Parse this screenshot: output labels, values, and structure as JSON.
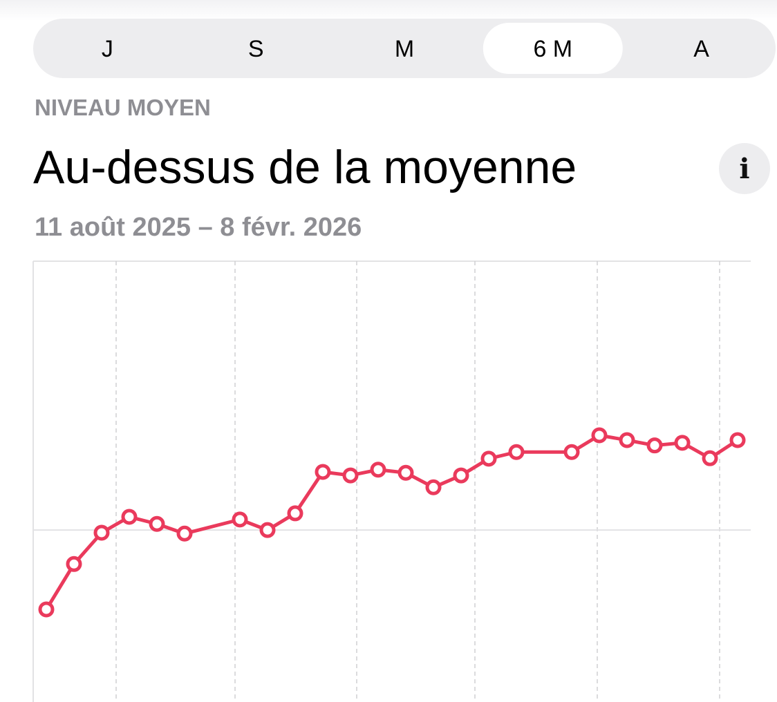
{
  "segmented_control": {
    "segments": [
      "J",
      "S",
      "M",
      "6 M",
      "A"
    ],
    "selected": 3
  },
  "header": {
    "label": "NIVEAU MOYEN",
    "title": "Au-dessus de la moyenne",
    "info": "i",
    "date_range": "11 août 2025 – 8 févr. 2026"
  },
  "chart_data": {
    "type": "line",
    "color": "#ea3a5c",
    "x": [
      0,
      1,
      2,
      3,
      4,
      5,
      7,
      8,
      9,
      10,
      11,
      12,
      13,
      14,
      15,
      16,
      17,
      19,
      20,
      21,
      22,
      23,
      24,
      25
    ],
    "values": [
      21.0,
      31.3,
      38.4,
      42.0,
      40.4,
      38.2,
      41.4,
      39.0,
      42.8,
      52.2,
      51.4,
      52.7,
      52.0,
      48.7,
      51.4,
      55.2,
      56.7,
      56.7,
      60.5,
      59.4,
      58.2,
      58.8,
      55.3,
      59.4
    ],
    "xlim": [
      -0.475,
      25.475
    ],
    "ylim": [
      0,
      100
    ],
    "xticks": [
      2.525,
      6.825,
      11.225,
      15.5,
      19.925,
      24.35
    ],
    "yticks": [
      39.0
    ],
    "grid": true
  }
}
